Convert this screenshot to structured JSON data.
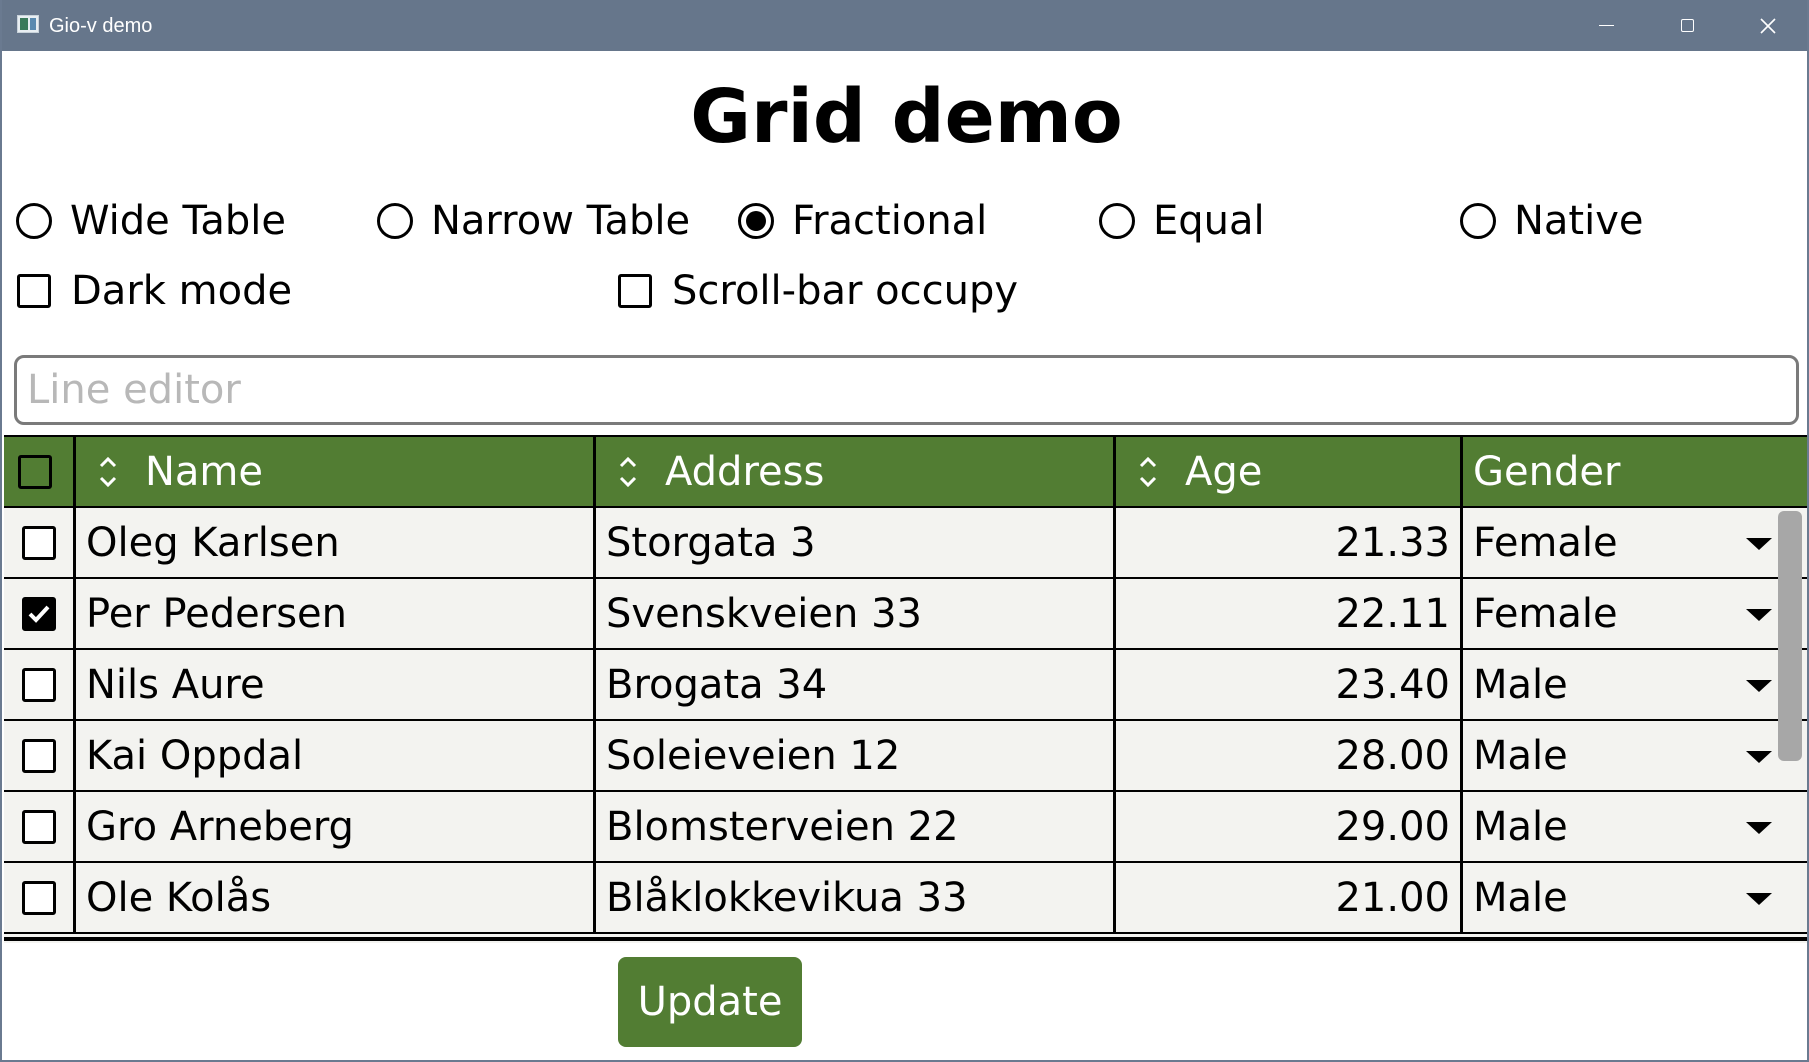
{
  "window": {
    "title": "Gio-v demo"
  },
  "page": {
    "heading": "Grid demo"
  },
  "layout_options": [
    {
      "label": "Wide Table",
      "selected": false
    },
    {
      "label": "Narrow Table",
      "selected": false
    },
    {
      "label": "Fractional",
      "selected": true
    },
    {
      "label": "Equal",
      "selected": false
    },
    {
      "label": "Native",
      "selected": false
    }
  ],
  "checkboxes": {
    "dark_mode": {
      "label": "Dark mode",
      "checked": false
    },
    "scrollbar_occupy": {
      "label": "Scroll-bar occupy",
      "checked": false
    }
  },
  "line_editor": {
    "placeholder": "Line editor",
    "value": ""
  },
  "grid": {
    "header_color": "#527d33",
    "columns": [
      {
        "label": "",
        "sortable": false
      },
      {
        "label": "Name",
        "sortable": true
      },
      {
        "label": "Address",
        "sortable": true
      },
      {
        "label": "Age",
        "sortable": true
      },
      {
        "label": "Gender",
        "sortable": false
      }
    ],
    "rows": [
      {
        "selected": false,
        "name": "Oleg Karlsen",
        "address": "Storgata 3",
        "age": "21.33",
        "gender": "Female"
      },
      {
        "selected": true,
        "name": "Per Pedersen",
        "address": "Svenskveien 33",
        "age": "22.11",
        "gender": "Female"
      },
      {
        "selected": false,
        "name": "Nils Aure",
        "address": "Brogata 34",
        "age": "23.40",
        "gender": "Male"
      },
      {
        "selected": false,
        "name": "Kai Oppdal",
        "address": "Soleieveien 12",
        "age": "28.00",
        "gender": "Male"
      },
      {
        "selected": false,
        "name": "Gro Arneberg",
        "address": "Blomsterveien 22",
        "age": "29.00",
        "gender": "Male"
      },
      {
        "selected": false,
        "name": "Ole Kolås",
        "address": "Blåklokkevikua 33",
        "age": "21.00",
        "gender": "Male"
      }
    ]
  },
  "update_button": {
    "label": "Update"
  }
}
